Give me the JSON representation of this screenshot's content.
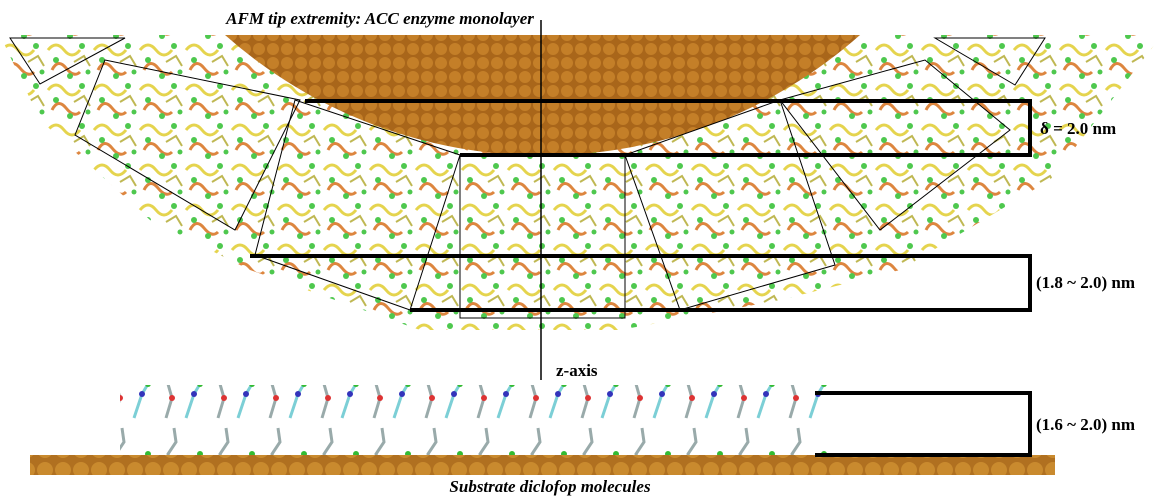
{
  "header": {
    "title": "AFM tip extremity: ACC enzyme monolayer"
  },
  "annotations": {
    "gap_tip": "δ = 2.0 nm",
    "gap_enzyme": "(1.8 ~ 2.0) nm",
    "axis": "z-axis",
    "gap_substrate": "(1.6 ~ 2.0) nm"
  },
  "footer": {
    "caption": "Substrate diclofop molecules"
  }
}
